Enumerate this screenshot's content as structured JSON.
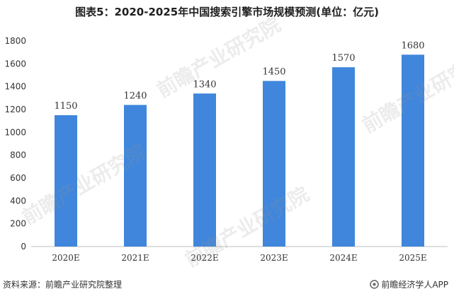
{
  "title": "图表5：2020-2025年中国搜索引擎市场规模预测(单位：亿元)",
  "footer": {
    "source": "资料来源：前瞻产业研究院整理",
    "brand": "前瞻经济学人APP",
    "brand_icon": "qianzhan-logo-icon"
  },
  "watermark": {
    "text": "前瞻产业研究院"
  },
  "colors": {
    "bar": "#3f86dc",
    "axis": "#bfbfbf",
    "label": "#333333"
  },
  "chart_data": {
    "type": "bar",
    "title": "图表5：2020-2025年中国搜索引擎市场规模预测(单位：亿元)",
    "categories": [
      "2020E",
      "2021E",
      "2022E",
      "2023E",
      "2024E",
      "2025E"
    ],
    "values": [
      1150,
      1240,
      1340,
      1450,
      1570,
      1680
    ],
    "xlabel": "",
    "ylabel": "",
    "ylim": [
      0,
      1800
    ],
    "yticks": [
      0,
      200,
      400,
      600,
      800,
      1000,
      1200,
      1400,
      1600,
      1800
    ],
    "grid": false,
    "legend": "none"
  }
}
